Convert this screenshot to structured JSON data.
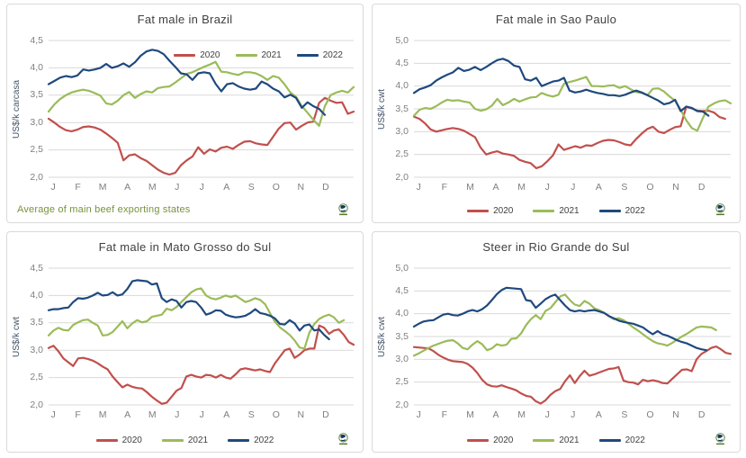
{
  "page": {
    "background": "#ffffff"
  },
  "colors": {
    "series_2020": "#C0504D",
    "series_2021": "#9BBB59",
    "series_2022": "#1F497D",
    "grid": "#D9D9D9",
    "panel_border": "#D9D9D9",
    "title_text": "#404040",
    "axis_text": "#7F7F7F",
    "y_axis_title_text": "#44546A",
    "footnote_text": "#77933C"
  },
  "icons": {
    "brand_logo": "green-globe-with-underline"
  },
  "chart_data": [
    {
      "type": "line",
      "title": "Fat male in Brazil",
      "ylabel": "US$/k carcasa",
      "xlabel": "",
      "ylim": [
        2.0,
        4.5
      ],
      "y_step": 0.5,
      "grid": "horizontal",
      "legend_position": "top-right-inside",
      "footnote": "Average of main beef exporting states",
      "months": [
        "J",
        "F",
        "M",
        "A",
        "M",
        "J",
        "J",
        "A",
        "S",
        "O",
        "N",
        "D"
      ],
      "series": [
        {
          "name": "2020",
          "color": "#C0504D",
          "values": [
            3.07,
            3.0,
            2.92,
            2.86,
            2.84,
            2.87,
            2.92,
            2.93,
            2.91,
            2.87,
            2.8,
            2.72,
            2.63,
            2.31,
            2.4,
            2.42,
            2.35,
            2.3,
            2.22,
            2.14,
            2.08,
            2.05,
            2.08,
            2.22,
            2.31,
            2.38,
            2.55,
            2.43,
            2.51,
            2.47,
            2.54,
            2.56,
            2.52,
            2.59,
            2.65,
            2.66,
            2.62,
            2.6,
            2.59,
            2.74,
            2.89,
            2.99,
            3.0,
            2.87,
            2.94,
            3.0,
            3.02,
            3.36,
            3.45,
            3.4,
            3.36,
            3.37,
            3.16,
            3.2
          ]
        },
        {
          "name": "2021",
          "color": "#9BBB59",
          "values": [
            3.2,
            3.33,
            3.43,
            3.5,
            3.55,
            3.58,
            3.6,
            3.58,
            3.54,
            3.49,
            3.35,
            3.33,
            3.4,
            3.5,
            3.56,
            3.45,
            3.52,
            3.57,
            3.55,
            3.63,
            3.65,
            3.66,
            3.73,
            3.81,
            3.89,
            3.92,
            3.97,
            4.02,
            4.06,
            4.11,
            3.93,
            3.92,
            3.89,
            3.87,
            3.92,
            3.92,
            3.9,
            3.85,
            3.78,
            3.85,
            3.82,
            3.7,
            3.55,
            3.47,
            3.3,
            3.18,
            3.05,
            2.94,
            3.3,
            3.5,
            3.55,
            3.58,
            3.55,
            3.65
          ]
        },
        {
          "name": "2022",
          "color": "#1F497D",
          "values": [
            3.7,
            3.76,
            3.82,
            3.85,
            3.83,
            3.86,
            3.97,
            3.95,
            3.97,
            4.0,
            4.07,
            4.0,
            4.03,
            4.08,
            4.02,
            4.1,
            4.22,
            4.3,
            4.33,
            4.31,
            4.25,
            4.13,
            4.02,
            3.9,
            3.88,
            3.78,
            3.9,
            3.92,
            3.9,
            3.71,
            3.57,
            3.7,
            3.72,
            3.66,
            3.62,
            3.6,
            3.62,
            3.75,
            3.7,
            3.62,
            3.57,
            3.46,
            3.51,
            3.45,
            3.27,
            3.37,
            3.3,
            3.25,
            3.14
          ]
        }
      ]
    },
    {
      "type": "line",
      "title": "Fat male in Sao Paulo",
      "ylabel": "US$/k cwt",
      "xlabel": "",
      "ylim": [
        2.0,
        5.0
      ],
      "y_step": 0.5,
      "grid": "horizontal",
      "legend_position": "bottom-center",
      "months": [
        "J",
        "F",
        "M",
        "A",
        "M",
        "J",
        "J",
        "A",
        "S",
        "O",
        "N",
        "D"
      ],
      "series": [
        {
          "name": "2020",
          "color": "#C0504D",
          "values": [
            3.33,
            3.28,
            3.18,
            3.05,
            3.0,
            3.03,
            3.06,
            3.08,
            3.06,
            3.02,
            2.95,
            2.88,
            2.65,
            2.5,
            2.54,
            2.57,
            2.52,
            2.5,
            2.47,
            2.38,
            2.34,
            2.31,
            2.2,
            2.24,
            2.35,
            2.48,
            2.72,
            2.6,
            2.64,
            2.68,
            2.65,
            2.7,
            2.69,
            2.75,
            2.8,
            2.82,
            2.81,
            2.77,
            2.72,
            2.7,
            2.84,
            2.96,
            3.06,
            3.11,
            3.0,
            2.97,
            3.04,
            3.1,
            3.12,
            3.55,
            3.51,
            3.46,
            3.45,
            3.46,
            3.42,
            3.32,
            3.28
          ]
        },
        {
          "name": "2021",
          "color": "#9BBB59",
          "values": [
            3.35,
            3.48,
            3.52,
            3.5,
            3.56,
            3.64,
            3.7,
            3.68,
            3.69,
            3.66,
            3.64,
            3.5,
            3.46,
            3.49,
            3.57,
            3.72,
            3.58,
            3.64,
            3.72,
            3.66,
            3.71,
            3.75,
            3.76,
            3.85,
            3.8,
            3.77,
            3.81,
            4.05,
            4.09,
            4.12,
            4.16,
            4.2,
            4.0,
            4.0,
            3.99,
            4.01,
            4.02,
            3.96,
            4.0,
            3.93,
            3.87,
            3.85,
            3.8,
            3.94,
            3.95,
            3.88,
            3.77,
            3.68,
            3.48,
            3.25,
            3.08,
            3.02,
            3.3,
            3.55,
            3.62,
            3.67,
            3.69,
            3.62
          ]
        },
        {
          "name": "2022",
          "color": "#1F497D",
          "values": [
            3.85,
            3.93,
            3.97,
            4.02,
            4.12,
            4.19,
            4.25,
            4.3,
            4.4,
            4.33,
            4.36,
            4.42,
            4.35,
            4.42,
            4.5,
            4.57,
            4.6,
            4.55,
            4.45,
            4.42,
            4.15,
            4.12,
            4.18,
            4.0,
            4.05,
            4.1,
            4.12,
            4.18,
            3.9,
            3.86,
            3.88,
            3.92,
            3.88,
            3.85,
            3.83,
            3.8,
            3.8,
            3.78,
            3.81,
            3.86,
            3.9,
            3.86,
            3.8,
            3.74,
            3.68,
            3.6,
            3.63,
            3.7,
            3.45,
            3.55,
            3.52,
            3.45,
            3.44,
            3.35
          ]
        }
      ]
    },
    {
      "type": "line",
      "title": "Fat male in Mato Grosso do Sul",
      "ylabel": "US$/k cwt",
      "xlabel": "",
      "ylim": [
        2.0,
        4.5
      ],
      "y_step": 0.5,
      "grid": "horizontal",
      "legend_position": "bottom-center",
      "months": [
        "J",
        "F",
        "M",
        "A",
        "M",
        "J",
        "J",
        "A",
        "S",
        "O",
        "N",
        "D"
      ],
      "series": [
        {
          "name": "2020",
          "color": "#C0504D",
          "values": [
            3.04,
            3.08,
            2.98,
            2.85,
            2.78,
            2.71,
            2.85,
            2.86,
            2.84,
            2.81,
            2.76,
            2.7,
            2.65,
            2.52,
            2.42,
            2.32,
            2.37,
            2.33,
            2.31,
            2.3,
            2.23,
            2.15,
            2.08,
            2.02,
            2.04,
            2.15,
            2.26,
            2.31,
            2.52,
            2.55,
            2.52,
            2.5,
            2.55,
            2.54,
            2.5,
            2.55,
            2.5,
            2.48,
            2.56,
            2.65,
            2.67,
            2.65,
            2.63,
            2.65,
            2.62,
            2.6,
            2.76,
            2.88,
            3.0,
            3.03,
            2.86,
            2.92,
            3.0,
            3.03,
            3.03,
            3.45,
            3.41,
            3.3,
            3.36,
            3.38,
            3.28,
            3.15,
            3.1
          ]
        },
        {
          "name": "2021",
          "color": "#9BBB59",
          "values": [
            3.27,
            3.36,
            3.41,
            3.37,
            3.36,
            3.46,
            3.51,
            3.55,
            3.56,
            3.5,
            3.45,
            3.27,
            3.28,
            3.33,
            3.43,
            3.53,
            3.4,
            3.49,
            3.55,
            3.51,
            3.53,
            3.61,
            3.63,
            3.65,
            3.76,
            3.73,
            3.79,
            3.88,
            3.97,
            4.06,
            4.11,
            4.13,
            4.0,
            3.95,
            3.93,
            3.96,
            4.0,
            3.97,
            4.0,
            3.94,
            3.88,
            3.91,
            3.95,
            3.92,
            3.84,
            3.68,
            3.52,
            3.42,
            3.35,
            3.28,
            3.18,
            3.05,
            3.03,
            3.32,
            3.48,
            3.57,
            3.62,
            3.65,
            3.6,
            3.5,
            3.55
          ]
        },
        {
          "name": "2022",
          "color": "#1F497D",
          "values": [
            3.73,
            3.75,
            3.75,
            3.77,
            3.78,
            3.88,
            3.95,
            3.94,
            3.96,
            4.0,
            4.05,
            4.0,
            4.01,
            4.06,
            4.0,
            4.02,
            4.12,
            4.26,
            4.28,
            4.27,
            4.26,
            4.2,
            4.22,
            3.95,
            3.88,
            3.93,
            3.9,
            3.78,
            3.88,
            3.9,
            3.88,
            3.78,
            3.65,
            3.68,
            3.73,
            3.72,
            3.65,
            3.62,
            3.6,
            3.61,
            3.63,
            3.68,
            3.75,
            3.68,
            3.66,
            3.63,
            3.58,
            3.48,
            3.47,
            3.55,
            3.49,
            3.36,
            3.45,
            3.47,
            3.36,
            3.38,
            3.28,
            3.2
          ]
        }
      ]
    },
    {
      "type": "line",
      "title": "Steer in Rio Grande do Sul",
      "ylabel": "US$/k cwt",
      "xlabel": "",
      "ylim": [
        2.0,
        5.0
      ],
      "y_step": 0.5,
      "grid": "horizontal",
      "legend_position": "bottom-center",
      "months": [
        "J",
        "F",
        "M",
        "A",
        "M",
        "J",
        "J",
        "A",
        "S",
        "O",
        "N",
        "D"
      ],
      "series": [
        {
          "name": "2020",
          "color": "#C0504D",
          "values": [
            3.27,
            3.26,
            3.25,
            3.24,
            3.18,
            3.1,
            3.04,
            2.99,
            2.96,
            2.95,
            2.94,
            2.9,
            2.82,
            2.7,
            2.55,
            2.45,
            2.41,
            2.4,
            2.43,
            2.39,
            2.36,
            2.32,
            2.25,
            2.2,
            2.18,
            2.08,
            2.03,
            2.1,
            2.22,
            2.3,
            2.35,
            2.52,
            2.65,
            2.48,
            2.63,
            2.75,
            2.64,
            2.67,
            2.71,
            2.75,
            2.79,
            2.8,
            2.83,
            2.53,
            2.5,
            2.49,
            2.45,
            2.55,
            2.52,
            2.54,
            2.52,
            2.48,
            2.47,
            2.57,
            2.67,
            2.77,
            2.78,
            2.74,
            3.0,
            3.12,
            3.18,
            3.25,
            3.28,
            3.22,
            3.14,
            3.12
          ]
        },
        {
          "name": "2021",
          "color": "#9BBB59",
          "values": [
            3.08,
            3.13,
            3.19,
            3.25,
            3.3,
            3.34,
            3.38,
            3.41,
            3.42,
            3.35,
            3.25,
            3.22,
            3.32,
            3.4,
            3.33,
            3.2,
            3.24,
            3.33,
            3.3,
            3.32,
            3.45,
            3.46,
            3.57,
            3.75,
            3.88,
            3.97,
            3.88,
            4.06,
            4.12,
            4.25,
            4.38,
            4.42,
            4.3,
            4.2,
            4.17,
            4.28,
            4.22,
            4.12,
            4.08,
            4.02,
            3.95,
            3.88,
            3.9,
            3.86,
            3.78,
            3.7,
            3.63,
            3.55,
            3.47,
            3.4,
            3.35,
            3.33,
            3.3,
            3.36,
            3.43,
            3.5,
            3.56,
            3.63,
            3.7,
            3.72,
            3.71,
            3.7,
            3.64
          ]
        },
        {
          "name": "2022",
          "color": "#1F497D",
          "values": [
            3.72,
            3.78,
            3.83,
            3.85,
            3.86,
            3.92,
            3.98,
            4.0,
            3.97,
            3.96,
            4.0,
            4.05,
            4.08,
            4.05,
            4.1,
            4.18,
            4.3,
            4.43,
            4.52,
            4.57,
            4.56,
            4.55,
            4.54,
            4.3,
            4.28,
            4.13,
            4.22,
            4.32,
            4.38,
            4.42,
            4.3,
            4.18,
            4.08,
            4.05,
            4.07,
            4.05,
            4.07,
            4.08,
            4.05,
            4.02,
            3.95,
            3.9,
            3.85,
            3.82,
            3.8,
            3.78,
            3.74,
            3.7,
            3.62,
            3.55,
            3.62,
            3.55,
            3.52,
            3.47,
            3.42,
            3.38,
            3.35,
            3.3,
            3.25,
            3.22,
            3.2
          ]
        }
      ]
    }
  ]
}
